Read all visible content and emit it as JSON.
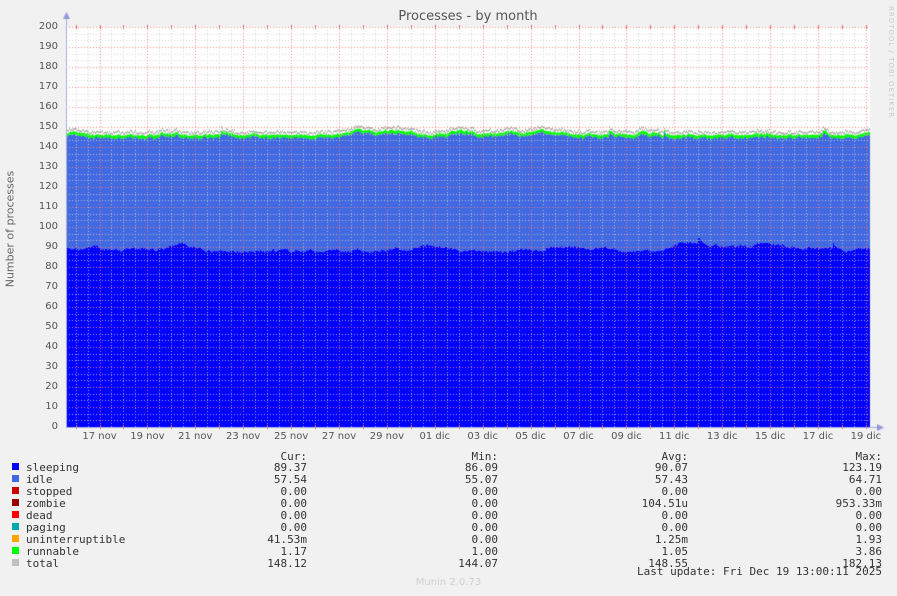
{
  "watermark": "RRDTOOL / TOBI OETIKER",
  "footer": {
    "version": "Munin 2.0.73"
  },
  "chart_data": {
    "type": "area",
    "stacked": true,
    "title": "Processes - by month",
    "ylabel": "Number of processes",
    "ylim": [
      0,
      200
    ],
    "ytick_step": 10,
    "grid": true,
    "legend_position": "bottom",
    "x_tick_labels": [
      "17 nov",
      "19 nov",
      "21 nov",
      "23 nov",
      "25 nov",
      "27 nov",
      "29 nov",
      "01 dic",
      "03 dic",
      "05 dic",
      "07 dic",
      "09 dic",
      "11 dic",
      "13 dic",
      "15 dic",
      "17 dic",
      "19 dic"
    ],
    "series": [
      {
        "name": "sleeping",
        "type": "area",
        "color": "#0000ff",
        "approx_mean": 90.07
      },
      {
        "name": "idle",
        "type": "area-stacked",
        "color": "#4169e1",
        "approx_mean": 57.43
      },
      {
        "name": "stopped",
        "type": "area-stacked",
        "color": "#cc0000",
        "approx_mean": 0
      },
      {
        "name": "zombie",
        "type": "area-stacked",
        "color": "#990000",
        "approx_mean": 0
      },
      {
        "name": "dead",
        "type": "area-stacked",
        "color": "#ff0000",
        "approx_mean": 0
      },
      {
        "name": "paging",
        "type": "area-stacked",
        "color": "#00aaaa",
        "approx_mean": 0
      },
      {
        "name": "uninterruptible",
        "type": "area-stacked",
        "color": "#ffa500",
        "approx_mean": 0.00125
      },
      {
        "name": "runnable",
        "type": "area-stacked",
        "color": "#00ff00",
        "approx_mean": 1.05
      },
      {
        "name": "total",
        "type": "line",
        "color": "#c0c0c0",
        "approx_mean": 148.55
      }
    ],
    "legend": {
      "columns": [
        "Cur:",
        "Min:",
        "Avg:",
        "Max:"
      ],
      "rows": [
        {
          "label": "sleeping",
          "color": "#0000ff",
          "cur": "89.37",
          "min": "86.09",
          "avg": "90.07",
          "max": "123.19"
        },
        {
          "label": "idle",
          "color": "#4169e1",
          "cur": "57.54",
          "min": "55.07",
          "avg": "57.43",
          "max": "64.71"
        },
        {
          "label": "stopped",
          "color": "#cc0000",
          "cur": "0.00",
          "min": "0.00",
          "avg": "0.00",
          "max": "0.00"
        },
        {
          "label": "zombie",
          "color": "#990000",
          "cur": "0.00",
          "min": "0.00",
          "avg": "104.51u",
          "max": "953.33m"
        },
        {
          "label": "dead",
          "color": "#ff0000",
          "cur": "0.00",
          "min": "0.00",
          "avg": "0.00",
          "max": "0.00"
        },
        {
          "label": "paging",
          "color": "#00aaaa",
          "cur": "0.00",
          "min": "0.00",
          "avg": "0.00",
          "max": "0.00"
        },
        {
          "label": "uninterruptible",
          "color": "#ffa500",
          "cur": "41.53m",
          "min": "0.00",
          "avg": "1.25m",
          "max": "1.93"
        },
        {
          "label": "runnable",
          "color": "#00ff00",
          "cur": "1.17",
          "min": "1.00",
          "avg": "1.05",
          "max": "3.86"
        },
        {
          "label": "total",
          "color": "#c0c0c0",
          "cur": "148.12",
          "min": "144.07",
          "avg": "148.55",
          "max": "182.13"
        }
      ]
    },
    "last_update": "Last update: Fri Dec 19 13:00:11 2025",
    "colors": {
      "page_bg": "#f1f1f1",
      "plot_bg": "#ffffff",
      "grid_major": "#f08080",
      "grid_minor": "#cfcfcf",
      "day_tick": "#e06868",
      "axis": "#a6aede",
      "arrow": "#8f99d8",
      "total_line_draw": "#a8a8a8"
    },
    "render_bands": {
      "sleeping_top": 90,
      "stack_top": 147,
      "runnable_thickness": 1.5,
      "total_offset": 0.8,
      "seed": 1337
    }
  }
}
